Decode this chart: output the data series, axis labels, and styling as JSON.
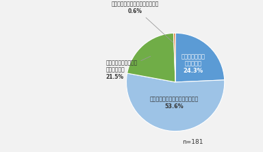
{
  "slices": [
    {
      "label_inside": "接種促進効果は\n大きかった\n24.3%",
      "value": 24.3,
      "color": "#5B9BD5",
      "text_color": "#FFFFFF"
    },
    {
      "label_inside": "接種促進効果はそれなりにあった\n53.6%",
      "value": 53.6,
      "color": "#9DC3E6",
      "text_color": "#333333"
    },
    {
      "label_outside": "接種促進効果の有無は\n判断できない\n21.5%",
      "value": 21.5,
      "color": "#70AD47",
      "text_color": "#333333"
    },
    {
      "label_outside": "接種促進効果はまったくなかった\n0.6%",
      "value": 0.6,
      "color": "#E07B39",
      "text_color": "#333333"
    }
  ],
  "startangle": 90,
  "note": "n=181",
  "background_color": "#F2F2F2",
  "text_color": "#333333"
}
